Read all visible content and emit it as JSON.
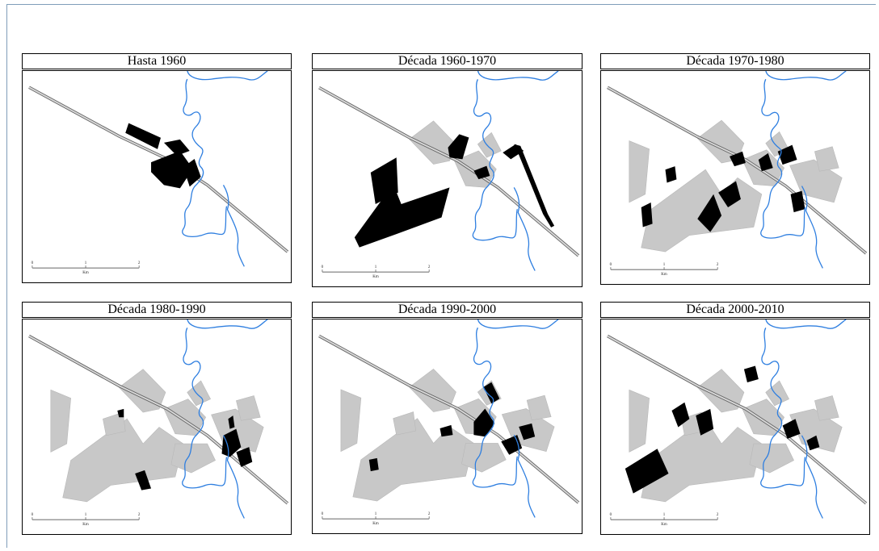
{
  "panels": [
    {
      "title": "Hasta 1960"
    },
    {
      "title": "Década 1960-1970"
    },
    {
      "title": "Década 1970-1980"
    },
    {
      "title": "Década 1980-1990"
    },
    {
      "title": "Década 1990-2000"
    },
    {
      "title": "Década 2000-2010"
    }
  ],
  "scale": {
    "ticks": [
      "0",
      "1",
      "2"
    ],
    "unit": "Km"
  },
  "colors": {
    "river": "#2f7fe0",
    "highway": "#8a8a8a",
    "previous_urban": "#c8c8c8",
    "new_urban": "#000000",
    "frame": "#7f9db9"
  }
}
